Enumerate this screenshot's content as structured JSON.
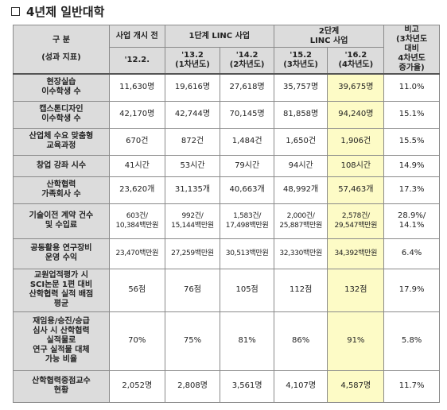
{
  "title": "4년제 일반대학",
  "header": {
    "category_line1": "구  분",
    "category_line2": "(성과 지표)",
    "pre_label": "사업 개시 전",
    "pre_year": "'12.2.",
    "phase1_label": "1단계 LINC 사업",
    "p1a_year": "'13.2",
    "p1a_sub": "(1차년도)",
    "p1b_year": "'14.2",
    "p1b_sub": "(2차년도)",
    "phase2_line1": "2단계",
    "phase2_line2": "LINC 사업",
    "p2a_year": "'15.2",
    "p2a_sub": "(3차년도)",
    "p2b_year": "'16.2",
    "p2b_sub": "(4차년도)",
    "note_line1": "비고",
    "note_line2": "(3차년도",
    "note_line3": "대비",
    "note_line4": "4차년도",
    "note_line5": "증가율)"
  },
  "rows": [
    {
      "label": [
        "현장실습",
        "이수학생 수"
      ],
      "pre": "11,630명",
      "p1a": "19,616명",
      "p1b": "27,618명",
      "p2a": "35,757명",
      "p2b": "39,675명",
      "note": "11.0%"
    },
    {
      "label": [
        "캡스톤디자인",
        "이수학생 수"
      ],
      "pre": "42,170명",
      "p1a": "42,744명",
      "p1b": "70,145명",
      "p2a": "81,858명",
      "p2b": "94,240명",
      "note": "15.1%"
    },
    {
      "label": [
        "산업체 수요 맞춤형",
        "교육과정"
      ],
      "pre": "670건",
      "p1a": "872건",
      "p1b": "1,484건",
      "p2a": "1,650건",
      "p2b": "1,906건",
      "note": "15.5%"
    },
    {
      "label": [
        "창업 강좌 시수"
      ],
      "pre": "41시간",
      "p1a": "53시간",
      "p1b": "79시간",
      "p2a": "94시간",
      "p2b": "108시간",
      "note": "14.9%"
    },
    {
      "label": [
        "산학협력",
        "가족회사 수"
      ],
      "pre": "23,620개",
      "p1a": "31,135개",
      "p1b": "40,663개",
      "p2a": "48,992개",
      "p2b": "57,463개",
      "note": "17.3%"
    },
    {
      "label": [
        "기술이전 계약 건수",
        "및 수입료"
      ],
      "pre": [
        "603건/",
        "10,384백만원"
      ],
      "p1a": [
        "992건/",
        "15,144백만원"
      ],
      "p1b": [
        "1,583건/",
        "17,498백만원"
      ],
      "p2a": [
        "2,000건/",
        "25,887백만원"
      ],
      "p2b": [
        "2,578건/",
        "29,547백만원"
      ],
      "note": [
        "28.9%/",
        "14.1%"
      ]
    },
    {
      "label": [
        "공동활용 연구장비",
        "운영 수익"
      ],
      "pre": "23,470백만원",
      "p1a": "27,259백만원",
      "p1b": "30,513백만원",
      "p2a": "32,330백만원",
      "p2b": "34,392백만원",
      "note": "6.4%"
    },
    {
      "label": [
        "교원업적평가 시",
        "SCI논문 1편 대비",
        "산학협력 실적 배점",
        "평균"
      ],
      "pre": "56점",
      "p1a": "76점",
      "p1b": "105점",
      "p2a": "112점",
      "p2b": "132점",
      "note": "17.9%"
    },
    {
      "label": [
        "재임용/승진/승급",
        "심사 시 산학협력",
        "실적물로",
        "연구 실적물 대체",
        "가능 비율"
      ],
      "pre": "70%",
      "p1a": "75%",
      "p1b": "81%",
      "p2a": "86%",
      "p2b": "91%",
      "note": "5.8%"
    },
    {
      "label": [
        "산학협력중점교수",
        "현황"
      ],
      "pre": "2,052명",
      "p1a": "2,808명",
      "p1b": "3,561명",
      "p2a": "4,107명",
      "p2b": "4,587명",
      "note": "11.7%"
    }
  ]
}
